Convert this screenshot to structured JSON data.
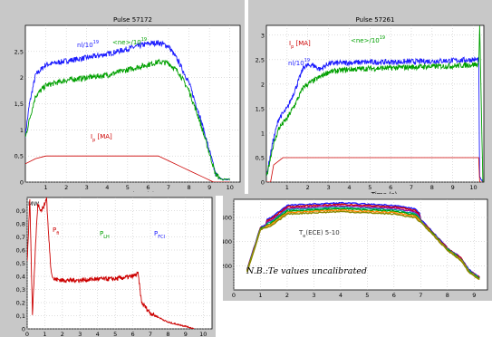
{
  "chart_data": [
    {
      "type": "line",
      "title": "Pulse 57172",
      "xlabel": "Time (s)",
      "ylabel": "",
      "xlim": [
        0,
        10.5
      ],
      "ylim": [
        0,
        3.0
      ],
      "xticks": [
        "1",
        "2",
        "3",
        "4",
        "5",
        "6",
        "7",
        "8",
        "9",
        "10"
      ],
      "yticks": [
        "0",
        "0,5",
        "1",
        "1,5",
        "2",
        "2,5"
      ],
      "grid": true,
      "series": [
        {
          "name": "nl/10",
          "sup": "19",
          "color": "#1a1aff",
          "x": [
            0,
            0.2,
            0.5,
            1.0,
            1.5,
            2.0,
            3.0,
            4.0,
            5.0,
            6.0,
            6.5,
            7.0,
            7.5,
            8.0,
            8.5,
            9.0,
            9.3,
            9.6,
            10.0
          ],
          "y": [
            0.9,
            1.5,
            2.05,
            2.25,
            2.28,
            2.32,
            2.38,
            2.45,
            2.55,
            2.65,
            2.67,
            2.6,
            2.3,
            1.9,
            1.3,
            0.6,
            0.15,
            0.05,
            0.05
          ]
        },
        {
          "name": "<ne>/10",
          "sup": "19",
          "color": "#00a000",
          "x": [
            0,
            0.2,
            0.5,
            1.0,
            1.5,
            2.0,
            3.0,
            4.0,
            5.0,
            6.0,
            6.5,
            7.0,
            7.5,
            8.0,
            8.5,
            9.0,
            9.3,
            9.6,
            10.0
          ],
          "y": [
            0.85,
            1.2,
            1.65,
            1.85,
            1.9,
            1.95,
            2.0,
            2.05,
            2.15,
            2.25,
            2.3,
            2.28,
            2.1,
            1.75,
            1.2,
            0.55,
            0.15,
            0.05,
            0.05
          ]
        },
        {
          "name": "I",
          "sub": "p",
          "unit": " [MA]",
          "color": "#cc0000",
          "x": [
            0,
            0.5,
            1.0,
            6.5,
            9.2,
            9.5,
            10.0
          ],
          "y": [
            0.35,
            0.45,
            0.5,
            0.5,
            0.0,
            0.0,
            0.0
          ]
        }
      ]
    },
    {
      "type": "line",
      "title": "Pulse 57261",
      "xlabel": "Time (s)",
      "ylabel": "",
      "xlim": [
        0,
        10.5
      ],
      "ylim": [
        0,
        3.2
      ],
      "xticks": [
        "1",
        "2",
        "3",
        "4",
        "5",
        "6",
        "7",
        "8",
        "9",
        "10"
      ],
      "yticks": [
        "0",
        "0,5",
        "1",
        "1,5",
        "2",
        "2,5",
        "3"
      ],
      "grid": true,
      "series": [
        {
          "name": "nl/10",
          "sup": "19",
          "color": "#1a1aff",
          "x": [
            0,
            0.3,
            0.6,
            1.0,
            1.4,
            1.8,
            2.2,
            2.6,
            3.0,
            4.0,
            5.0,
            6.0,
            7.0,
            8.0,
            9.0,
            10.0,
            10.25,
            10.3,
            10.45
          ],
          "y": [
            0.1,
            0.8,
            1.3,
            1.5,
            1.9,
            2.35,
            2.4,
            2.3,
            2.42,
            2.44,
            2.45,
            2.45,
            2.46,
            2.47,
            2.48,
            2.5,
            2.5,
            0.1,
            0.0
          ]
        },
        {
          "name": "<ne>/10",
          "sup": "19",
          "color": "#00a000",
          "x": [
            0,
            0.3,
            0.6,
            1.0,
            1.4,
            1.8,
            2.2,
            2.6,
            3.0,
            4.0,
            5.0,
            6.0,
            7.0,
            8.0,
            9.0,
            10.0,
            10.25,
            10.3,
            10.45
          ],
          "y": [
            0.1,
            0.7,
            1.1,
            1.3,
            1.6,
            1.95,
            2.05,
            2.15,
            2.25,
            2.3,
            2.32,
            2.33,
            2.35,
            2.36,
            2.37,
            2.4,
            2.4,
            3.2,
            0.0
          ]
        },
        {
          "name": "I",
          "sub": "p",
          "unit": " [MA]",
          "color": "#cc0000",
          "x": [
            0,
            0.2,
            0.35,
            0.8,
            10.25,
            10.3,
            10.45
          ],
          "y": [
            0.0,
            0.0,
            0.35,
            0.5,
            0.5,
            0.0,
            0.0
          ]
        }
      ]
    },
    {
      "type": "line",
      "title": "",
      "xlabel": "",
      "ylabel": "MW",
      "xlim": [
        0,
        10.5
      ],
      "ylim": [
        0,
        1.0
      ],
      "xticks": [
        "0",
        "1",
        "2",
        "3",
        "4",
        "5",
        "6",
        "7",
        "8",
        "9",
        "10"
      ],
      "yticks": [
        "0",
        "0,1",
        "0,2",
        "0,3",
        "0,4",
        "0,5",
        "0,6",
        "0,7",
        "0,8",
        "0,9"
      ],
      "grid": true,
      "labels": [
        {
          "text": "P",
          "sub": "fi",
          "color": "#cc0000"
        },
        {
          "text": "P",
          "sub": "LH",
          "color": "#00a000"
        },
        {
          "text": "P",
          "sub": "FCI",
          "color": "#1a1aff"
        }
      ],
      "series": [
        {
          "name": "P",
          "sub": "fi",
          "color": "#cc0000",
          "x": [
            0,
            0.15,
            0.3,
            0.5,
            0.6,
            0.8,
            1.0,
            1.1,
            1.2,
            1.35,
            1.5,
            2.0,
            3.0,
            4.0,
            5.0,
            6.0,
            6.3,
            6.5,
            7.0,
            8.0,
            9.0,
            9.5
          ],
          "y": [
            0.5,
            1.0,
            0.1,
            0.7,
            0.95,
            0.9,
            0.95,
            1.0,
            0.75,
            0.45,
            0.38,
            0.37,
            0.37,
            0.38,
            0.38,
            0.4,
            0.42,
            0.2,
            0.12,
            0.05,
            0.02,
            0.0
          ]
        }
      ]
    },
    {
      "type": "line",
      "title": "",
      "xlabel": "",
      "ylabel": "",
      "xlim": [
        0,
        9.5
      ],
      "ylim": [
        0,
        750
      ],
      "xticks": [
        "0",
        "1",
        "2",
        "3",
        "4",
        "5",
        "6",
        "7",
        "8",
        "9"
      ],
      "yticks": [
        "200",
        "400",
        "600"
      ],
      "grid": true,
      "labels": [
        {
          "text": "T",
          "sub": "e",
          "rest": "(ECE) 5-10",
          "color": "#333333"
        }
      ],
      "note": "N.B.:Te values uncalibrated",
      "palette": [
        "#1a1aff",
        "#cc0000",
        "#a000a0",
        "#00a0a0",
        "#00a000",
        "#ff8800",
        "#888800"
      ],
      "series_offsets": [
        60,
        48,
        36,
        24,
        12,
        0,
        -12
      ],
      "series": [
        {
          "x": [
            0.5,
            1.0,
            1.2,
            1.4,
            2.0,
            3.0,
            4.0,
            5.0,
            6.0,
            6.8,
            7.5,
            8.0,
            8.5,
            8.8,
            9.0,
            9.2
          ],
          "y": [
            150,
            500,
            520,
            540,
            640,
            650,
            660,
            650,
            640,
            610,
            450,
            330,
            250,
            150,
            120,
            90
          ]
        }
      ]
    }
  ]
}
